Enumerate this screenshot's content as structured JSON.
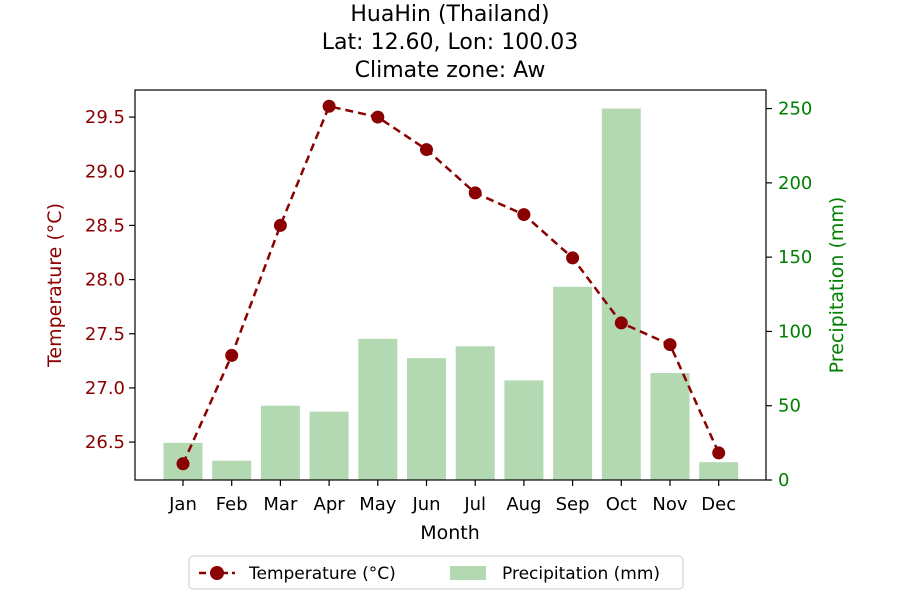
{
  "chart_data": {
    "type": "bar+line",
    "title_lines": [
      "HuaHin (Thailand)",
      "Lat: 12.60, Lon: 100.03",
      "Climate zone: Aw"
    ],
    "xlabel": "Month",
    "ylabel_left": "Temperature (°C)",
    "ylabel_right": "Precipitation (mm)",
    "categories": [
      "Jan",
      "Feb",
      "Mar",
      "Apr",
      "May",
      "Jun",
      "Jul",
      "Aug",
      "Sep",
      "Oct",
      "Nov",
      "Dec"
    ],
    "temperature": {
      "name": "Temperature (°C)",
      "values": [
        26.3,
        27.3,
        28.5,
        29.6,
        29.5,
        29.2,
        28.8,
        28.6,
        28.2,
        27.6,
        27.4,
        26.4
      ],
      "color": "#8b0000",
      "axis": "left",
      "style": "dashed line with circle markers"
    },
    "precipitation": {
      "name": "Precipitation (mm)",
      "values": [
        25,
        13,
        50,
        46,
        95,
        82,
        90,
        67,
        130,
        250,
        72,
        12
      ],
      "color": "#b2d9b2",
      "axis": "right"
    },
    "ylim_left": [
      26.15,
      29.75
    ],
    "ylim_right": [
      0,
      262.5
    ],
    "yticks_left": [
      "26.5",
      "27.0",
      "27.5",
      "28.0",
      "28.5",
      "29.0",
      "29.5"
    ],
    "yticks_right": [
      "0",
      "50",
      "100",
      "150",
      "200",
      "250"
    ],
    "left_axis_color": "#8b0000",
    "right_axis_color": "#008000",
    "grid": false,
    "legend_position": "bottom-center"
  }
}
